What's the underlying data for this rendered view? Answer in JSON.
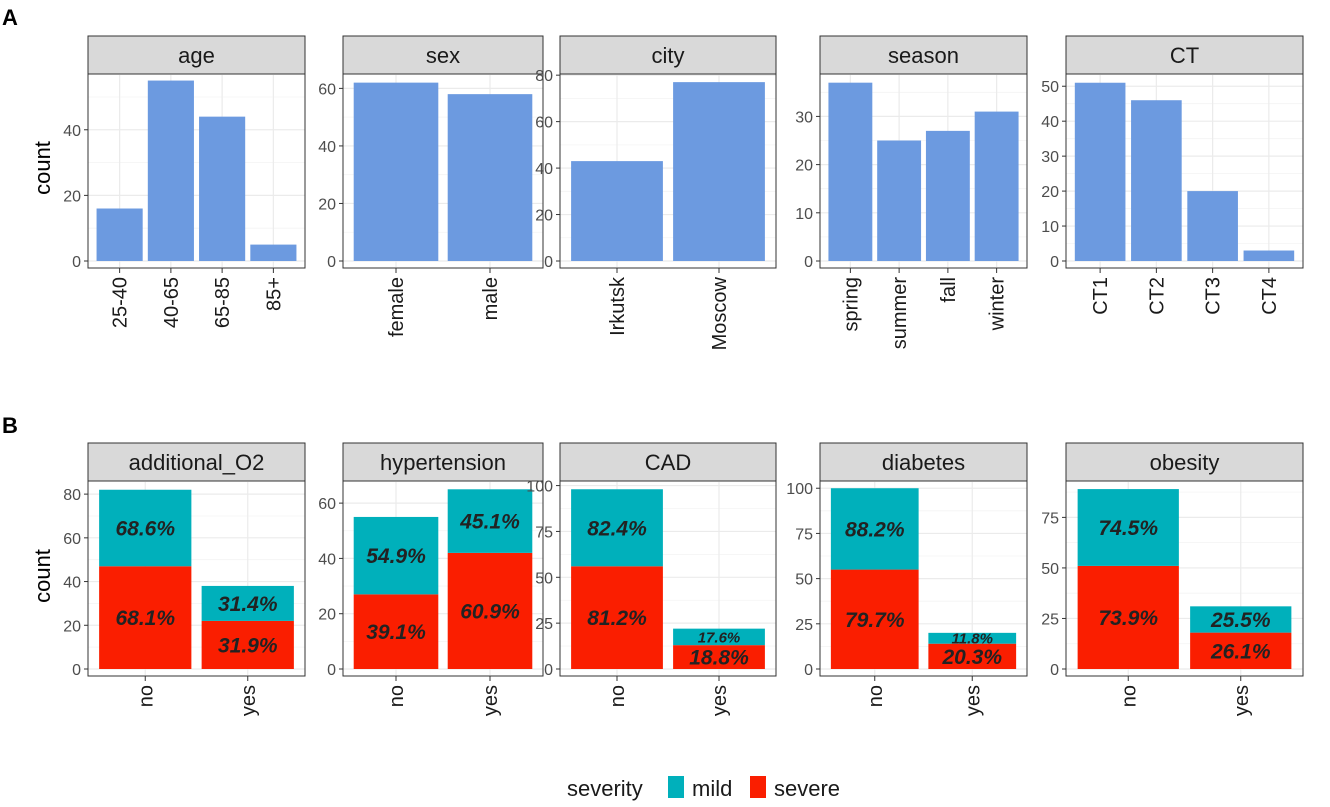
{
  "panel_labels": [
    "A",
    "B"
  ],
  "colors": {
    "bar": "#6c9ae0",
    "mild": "#00b0bb",
    "severe": "#fa1e00",
    "strip": "#d9d9d9"
  },
  "legend": {
    "title": "severity",
    "mild": "mild",
    "severe": "severe"
  },
  "chart_data": [
    {
      "type": "bar",
      "row": "A",
      "ylabel": "count",
      "facets": [
        {
          "title": "age",
          "categories": [
            "25-40",
            "40-65",
            "65-85",
            "85+"
          ],
          "values": [
            16,
            55,
            44,
            5
          ],
          "ylim": [
            0,
            57
          ],
          "yticks": [
            0,
            20,
            40
          ]
        },
        {
          "title": "sex",
          "categories": [
            "female",
            "male"
          ],
          "values": [
            62,
            58
          ],
          "ylim": [
            0,
            65
          ],
          "yticks": [
            0,
            20,
            40,
            60
          ]
        },
        {
          "title": "city",
          "categories": [
            "Irkutsk",
            "Moscow"
          ],
          "values": [
            43,
            77
          ],
          "ylim": [
            0,
            80.5
          ],
          "yticks": [
            0,
            20,
            40,
            60,
            80
          ]
        },
        {
          "title": "season",
          "categories": [
            "spring",
            "summer",
            "fall",
            "winter"
          ],
          "values": [
            37,
            25,
            27,
            31
          ],
          "ylim": [
            0,
            38.8
          ],
          "yticks": [
            0,
            10,
            20,
            30
          ]
        },
        {
          "title": "CT",
          "categories": [
            "CT1",
            "CT2",
            "CT3",
            "CT4"
          ],
          "values": [
            51,
            46,
            20,
            3
          ],
          "ylim": [
            0,
            53.5
          ],
          "yticks": [
            0,
            10,
            20,
            30,
            40,
            50
          ]
        }
      ]
    },
    {
      "type": "bar",
      "stacked": true,
      "row": "B",
      "ylabel": "count",
      "series_names": [
        "mild",
        "severe"
      ],
      "facets": [
        {
          "title": "additional_O2",
          "categories": [
            "no",
            "yes"
          ],
          "severe": [
            47,
            22
          ],
          "mild": [
            35,
            16
          ],
          "mild_labels": [
            "68.6%",
            "31.4%"
          ],
          "severe_labels": [
            "68.1%",
            "31.9%"
          ],
          "ylim": [
            0,
            86
          ],
          "yticks": [
            0,
            20,
            40,
            60,
            80
          ]
        },
        {
          "title": "hypertension",
          "categories": [
            "no",
            "yes"
          ],
          "severe": [
            27,
            42
          ],
          "mild": [
            28,
            23
          ],
          "mild_labels": [
            "54.9%",
            "45.1%"
          ],
          "severe_labels": [
            "39.1%",
            "60.9%"
          ],
          "ylim": [
            0,
            68
          ],
          "yticks": [
            0,
            20,
            40,
            60
          ]
        },
        {
          "title": "CAD",
          "categories": [
            "no",
            "yes"
          ],
          "severe": [
            56,
            13
          ],
          "mild": [
            42,
            9
          ],
          "mild_labels": [
            "82.4%",
            "17.6%"
          ],
          "severe_labels": [
            "81.2%",
            "18.8%"
          ],
          "ylim": [
            0,
            102.5
          ],
          "yticks": [
            0,
            25,
            50,
            75,
            100
          ]
        },
        {
          "title": "diabetes",
          "categories": [
            "no",
            "yes"
          ],
          "severe": [
            55,
            14
          ],
          "mild": [
            45,
            6
          ],
          "mild_labels": [
            "88.2%",
            "11.8%"
          ],
          "severe_labels": [
            "79.7%",
            "20.3%"
          ],
          "ylim": [
            0,
            104
          ],
          "yticks": [
            0,
            25,
            50,
            75,
            100
          ]
        },
        {
          "title": "obesity",
          "categories": [
            "no",
            "yes"
          ],
          "severe": [
            51,
            18
          ],
          "mild": [
            38,
            13
          ],
          "mild_labels": [
            "74.5%",
            "25.5%"
          ],
          "severe_labels": [
            "73.9%",
            "26.1%"
          ],
          "ylim": [
            0,
            93
          ],
          "yticks": [
            0,
            25,
            50,
            75
          ]
        }
      ]
    }
  ]
}
